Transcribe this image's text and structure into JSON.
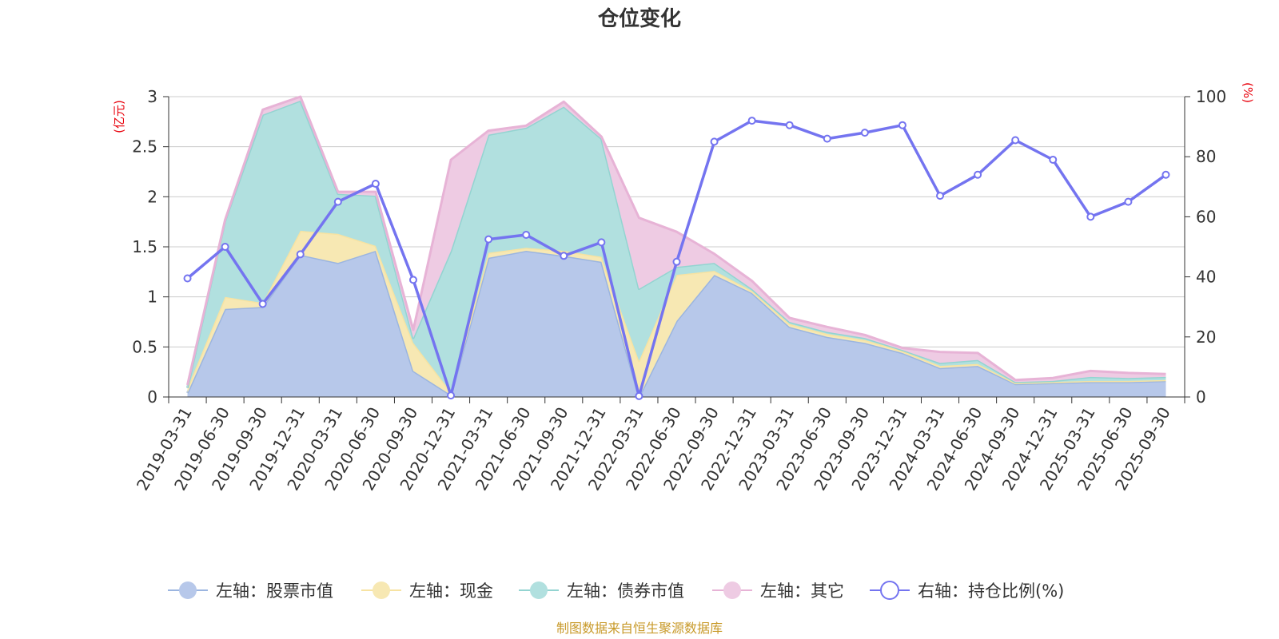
{
  "chart_data": {
    "type": "area",
    "title": "仓位变化",
    "left_axis": {
      "unit": "(亿元)",
      "ylim": [
        0,
        3
      ],
      "ticks": [
        "0",
        "0.5",
        "1",
        "1.5",
        "2",
        "2.5",
        "3"
      ]
    },
    "right_axis": {
      "unit": "(%)",
      "ylim": [
        0,
        100
      ],
      "ticks": [
        "0",
        "20",
        "40",
        "60",
        "80",
        "100"
      ]
    },
    "categories": [
      "2019-03-31",
      "2019-06-30",
      "2019-09-30",
      "2019-12-31",
      "2020-03-31",
      "2020-06-30",
      "2020-09-30",
      "2020-12-31",
      "2021-03-31",
      "2021-06-30",
      "2021-09-30",
      "2021-12-31",
      "2022-03-31",
      "2022-06-30",
      "2022-09-30",
      "2022-12-31",
      "2023-03-31",
      "2023-06-30",
      "2023-09-30",
      "2023-12-31",
      "2024-03-31",
      "2024-06-30",
      "2024-09-30",
      "2024-12-31",
      "2025-03-31",
      "2025-06-30",
      "2025-09-30"
    ],
    "stacked_series": [
      {
        "name": "左轴：股票市值",
        "color": "#9bb5e0",
        "fill": "#b7c8ea",
        "values": [
          0.04,
          0.88,
          0.9,
          1.42,
          1.34,
          1.46,
          0.26,
          0.02,
          1.39,
          1.46,
          1.41,
          1.35,
          0.0,
          0.76,
          1.22,
          1.04,
          0.7,
          0.6,
          0.54,
          0.44,
          0.29,
          0.31,
          0.13,
          0.14,
          0.15,
          0.15,
          0.16
        ]
      },
      {
        "name": "左轴：现金",
        "color": "#f7e3a2",
        "fill": "#f7e8b3",
        "values": [
          0.05,
          0.12,
          0.04,
          0.24,
          0.29,
          0.05,
          0.28,
          0.03,
          0.05,
          0.03,
          0.05,
          0.05,
          0.36,
          0.46,
          0.04,
          0.02,
          0.03,
          0.03,
          0.03,
          0.02,
          0.02,
          0.02,
          0.01,
          0.01,
          0.01,
          0.01,
          0.01
        ]
      },
      {
        "name": "左轴：债券市值",
        "color": "#93d4d1",
        "fill": "#b1e0df",
        "values": [
          0.0,
          0.76,
          1.88,
          1.3,
          0.4,
          0.5,
          0.05,
          1.41,
          1.18,
          1.2,
          1.44,
          1.18,
          0.72,
          0.08,
          0.08,
          0.02,
          0.02,
          0.02,
          0.02,
          0.01,
          0.03,
          0.04,
          0.01,
          0.01,
          0.04,
          0.03,
          0.03
        ]
      },
      {
        "name": "左轴：其它",
        "color": "#e7b3d6",
        "fill": "#eecbe3",
        "values": [
          0.03,
          0.01,
          0.05,
          0.04,
          0.02,
          0.04,
          0.08,
          0.91,
          0.04,
          0.02,
          0.05,
          0.02,
          0.71,
          0.35,
          0.09,
          0.08,
          0.04,
          0.05,
          0.03,
          0.02,
          0.11,
          0.07,
          0.02,
          0.03,
          0.06,
          0.05,
          0.03
        ]
      }
    ],
    "line_series": {
      "name": "右轴：持仓比例(%)",
      "color": "#7474f0",
      "values": [
        39.5,
        50,
        31,
        47.5,
        65,
        71,
        39,
        0.5,
        52.5,
        54,
        47,
        51.5,
        0.3,
        45,
        85,
        92,
        90.5,
        86,
        88,
        90.5,
        67,
        74,
        85.5,
        79,
        60,
        65,
        74
      ]
    },
    "grid": true,
    "legend_position": "bottom",
    "source": "制图数据来自恒生聚源数据库"
  }
}
